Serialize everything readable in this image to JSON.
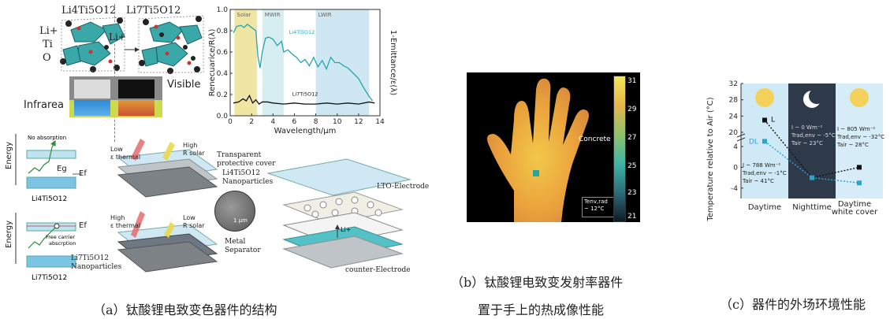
{
  "panel_a": {
    "formula_left": "Li4Ti5O12",
    "formula_right": "Li7Ti5O12",
    "li_label": "Li+",
    "ti_label": "Ti",
    "o_label": "O",
    "li_arrow_label": "Li+",
    "visible_label": "Visible",
    "infrared_label": "Infrarea",
    "energy_label": "Energy",
    "no_absorption": "No absorption",
    "eg_label": "Eg",
    "ef_label": "Ef",
    "free_carrier": "Free carrier absorption",
    "band_left_top": "Li4Ti5O12",
    "band_left_bottom": "Li7Ti5O12",
    "low_eps": "Low",
    "eps_thermal": "ε thermal",
    "high_r": "High",
    "r_solar": "R solar",
    "high_eps": "High",
    "low_r": "Low",
    "np_left_top": "Li4Ti5O12 Nanoparticles",
    "np_left_bottom": "Li7Ti5O12 Nanoparticles",
    "transparent_cover": "Transparent protective cover",
    "np_mid": "Li4Ti5O12 Nanoparticles",
    "metal_separator": "Metal Separator",
    "lto_electrode": "LTO-Electrode",
    "counter_electrode": "counter-Electrode",
    "scale_label": "1 μm",
    "li_plus_small": "Li+",
    "caption": "（a）钛酸锂电致变色器件的结构"
  },
  "spectrum_chart": {
    "chart_data": {
      "type": "line",
      "xlabel": "Wavelength/μm",
      "ylabel_left": "Renecuarice/R(λ)",
      "ylabel_right": "1-Emittance/ε(λ)",
      "xlim": [
        0,
        14
      ],
      "ylim": [
        0.0,
        1.0
      ],
      "x_ticks": [
        0,
        2,
        4,
        6,
        8,
        10,
        12,
        14
      ],
      "y_ticks": [
        0.0,
        0.2,
        0.4,
        0.6,
        0.8,
        1.0
      ],
      "regions": [
        {
          "name": "Solar",
          "from": 0.4,
          "to": 2.5,
          "color": "#efe6a3"
        },
        {
          "name": "MWIR",
          "from": 3.0,
          "to": 5.0,
          "color": "#d6eef2"
        },
        {
          "name": "LWIR",
          "from": 8.0,
          "to": 13.0,
          "color": "#cfe7f3"
        }
      ],
      "series": [
        {
          "name": "Li4Ti5O12",
          "color": "#27a6ad",
          "x": [
            0.3,
            0.6,
            1.0,
            1.3,
            1.6,
            2.0,
            2.4,
            2.6,
            2.8,
            3.0,
            3.3,
            3.6,
            4.0,
            4.4,
            4.8,
            5.0,
            5.4,
            5.8,
            6.2,
            6.6,
            7.0,
            7.4,
            7.8,
            8.2,
            8.6,
            9.0,
            9.4,
            9.8,
            10.2,
            10.6,
            11.0,
            11.5,
            12.0,
            12.5,
            13.0,
            13.3
          ],
          "y": [
            0.78,
            0.84,
            0.85,
            0.83,
            0.86,
            0.83,
            0.8,
            0.55,
            0.45,
            0.6,
            0.73,
            0.74,
            0.72,
            0.66,
            0.7,
            0.6,
            0.62,
            0.58,
            0.55,
            0.5,
            0.53,
            0.47,
            0.55,
            0.46,
            0.52,
            0.44,
            0.55,
            0.5,
            0.5,
            0.47,
            0.45,
            0.4,
            0.35,
            0.26,
            0.18,
            0.14
          ]
        },
        {
          "name": "Li7Ti5O12",
          "color": "#111111",
          "x": [
            0.3,
            0.8,
            1.2,
            1.5,
            1.8,
            2.1,
            2.4,
            2.7,
            3.0,
            3.5,
            4.0,
            5.0,
            6.0,
            7.0,
            8.0,
            9.0,
            10.0,
            11.0,
            12.0,
            13.0,
            13.5
          ],
          "y": [
            0.12,
            0.13,
            0.16,
            0.14,
            0.19,
            0.12,
            0.15,
            0.11,
            0.13,
            0.13,
            0.12,
            0.11,
            0.12,
            0.11,
            0.11,
            0.12,
            0.11,
            0.12,
            0.11,
            0.13,
            0.12
          ]
        }
      ]
    }
  },
  "panel_b": {
    "colorbar_ticks": [
      "31",
      "29",
      "27",
      "25",
      "23",
      "21"
    ],
    "concrete_label": "Concrete",
    "temp_label_line1": "Tenv,rad",
    "temp_label_line2": "~ 12°C",
    "caption_line1": "（b）钛酸锂电致变发射率器件",
    "caption_line2": "置于手上的热成像性能"
  },
  "panel_c": {
    "chart_data": {
      "type": "line",
      "ylabel": "Temperature relative to Air (°C)",
      "categories": [
        "Daytime",
        "Nighttime",
        "Daytime white cover"
      ],
      "y_ticks_top": [
        32,
        28,
        24,
        20
      ],
      "y_ticks_bottom": [
        4,
        0,
        -4
      ],
      "series": [
        {
          "name": "L",
          "color": "#111111",
          "values": [
            23,
            -2,
            0
          ]
        },
        {
          "name": "DL",
          "color": "#2aa6c9",
          "values": [
            5,
            -2,
            -3
          ]
        }
      ]
    },
    "day_box": {
      "line1": "I ~ 788 Wm⁻²",
      "line2": "Trad,env ~ -1°C",
      "line3": "Tair ~ 41°C"
    },
    "night_box": {
      "line1": "I ~ 0 Wm⁻²",
      "line2": "Trad,env ~ -5°C",
      "line3": "Tair ~ 23°C"
    },
    "cover_box": {
      "line1": "I ~ 805 Wm⁻²",
      "line2": "Trad,env ~ -32°C",
      "line3": "Tair ~ 28°C"
    },
    "x_label_1": "Daytime",
    "x_label_2": "Nighttime",
    "x_label_3a": "Daytime",
    "x_label_3b": "white cover",
    "caption": "（c）器件的外场环境性能"
  }
}
